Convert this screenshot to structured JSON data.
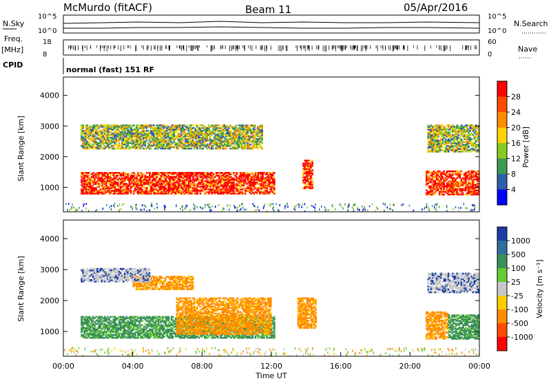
{
  "header": {
    "station": "McMurdo (fitACF)",
    "beam": "Beam 11",
    "date": "05/Apr/2016"
  },
  "strip_panels": {
    "nsky_label": "N.Sky",
    "nsearch_label": "N.Search",
    "noise_ticks": [
      "10^5",
      "10^0"
    ],
    "freq_label": "Freq.",
    "freq_unit": "[MHz]",
    "freq_ticks": [
      "18",
      "8"
    ],
    "nave_label": "Nave",
    "nave_ticks": [
      "60",
      "0"
    ],
    "cpid_label": "CPID",
    "cpid_text": "normal (fast) 151 RF"
  },
  "chart_data": [
    {
      "type": "heatmap",
      "name": "power",
      "ylabel": "Slant Range [km]",
      "yticks": [
        1000,
        2000,
        3000,
        4000
      ],
      "ylim": [
        200,
        4600
      ],
      "xlim": [
        0,
        24
      ],
      "colorbar": {
        "label": "Power [dB]",
        "ticks": [
          "28",
          "24",
          "20",
          "16",
          "12",
          "8",
          "4"
        ],
        "colors": [
          "#ff0000",
          "#ff4a00",
          "#ff8c00",
          "#ffd400",
          "#88cc22",
          "#3a9a50",
          "#2e5fa8",
          "#0000ff"
        ]
      },
      "patches": [
        {
          "t0": 1.0,
          "t1": 12.2,
          "r0": 780,
          "r1": 1500,
          "value": "high"
        },
        {
          "t0": 13.8,
          "t1": 14.4,
          "r0": 950,
          "r1": 1900,
          "value": "high"
        },
        {
          "t0": 20.9,
          "t1": 24.0,
          "r0": 750,
          "r1": 1550,
          "value": "high"
        },
        {
          "t0": 1.0,
          "t1": 11.5,
          "r0": 2250,
          "r1": 3050,
          "value": "mid"
        },
        {
          "t0": 21.0,
          "t1": 24.0,
          "r0": 2150,
          "r1": 3050,
          "value": "mid"
        }
      ]
    },
    {
      "type": "heatmap",
      "name": "velocity",
      "ylabel": "Slant Range [km]",
      "yticks": [
        1000,
        2000,
        3000,
        4000
      ],
      "ylim": [
        200,
        4600
      ],
      "xlim": [
        0,
        24
      ],
      "xticks": [
        "00:00",
        "04:00",
        "08:00",
        "12:00",
        "16:00",
        "20:00",
        "00:00"
      ],
      "xlabel": "Time UT",
      "colorbar": {
        "label": "Velocity [m s⁻¹]",
        "ticks": [
          "1000",
          "500",
          "100",
          "25",
          "-25",
          "-100",
          "-500",
          "-1000"
        ],
        "colors": [
          "#1a3da8",
          "#2d6e9e",
          "#3a8f5a",
          "#66cc33",
          "#c8c8c8",
          "#ffcc00",
          "#ff8c00",
          "#ff4a00",
          "#ff0000"
        ]
      },
      "patches": [
        {
          "t0": 1.0,
          "t1": 12.2,
          "r0": 780,
          "r1": 1500,
          "value": "green"
        },
        {
          "t0": 6.5,
          "t1": 12.0,
          "r0": 900,
          "r1": 2100,
          "value": "orange"
        },
        {
          "t0": 4.0,
          "t1": 7.5,
          "r0": 2350,
          "r1": 2800,
          "value": "orange"
        },
        {
          "t0": 1.0,
          "t1": 5.0,
          "r0": 2600,
          "r1": 3050,
          "value": "grey"
        },
        {
          "t0": 13.5,
          "t1": 14.6,
          "r0": 1100,
          "r1": 2100,
          "value": "orange"
        },
        {
          "t0": 20.9,
          "t1": 22.2,
          "r0": 750,
          "r1": 1650,
          "value": "orange"
        },
        {
          "t0": 22.2,
          "t1": 24.0,
          "r0": 750,
          "r1": 1550,
          "value": "green"
        },
        {
          "t0": 21.0,
          "t1": 24.0,
          "r0": 2250,
          "r1": 2900,
          "value": "grey"
        }
      ]
    }
  ]
}
